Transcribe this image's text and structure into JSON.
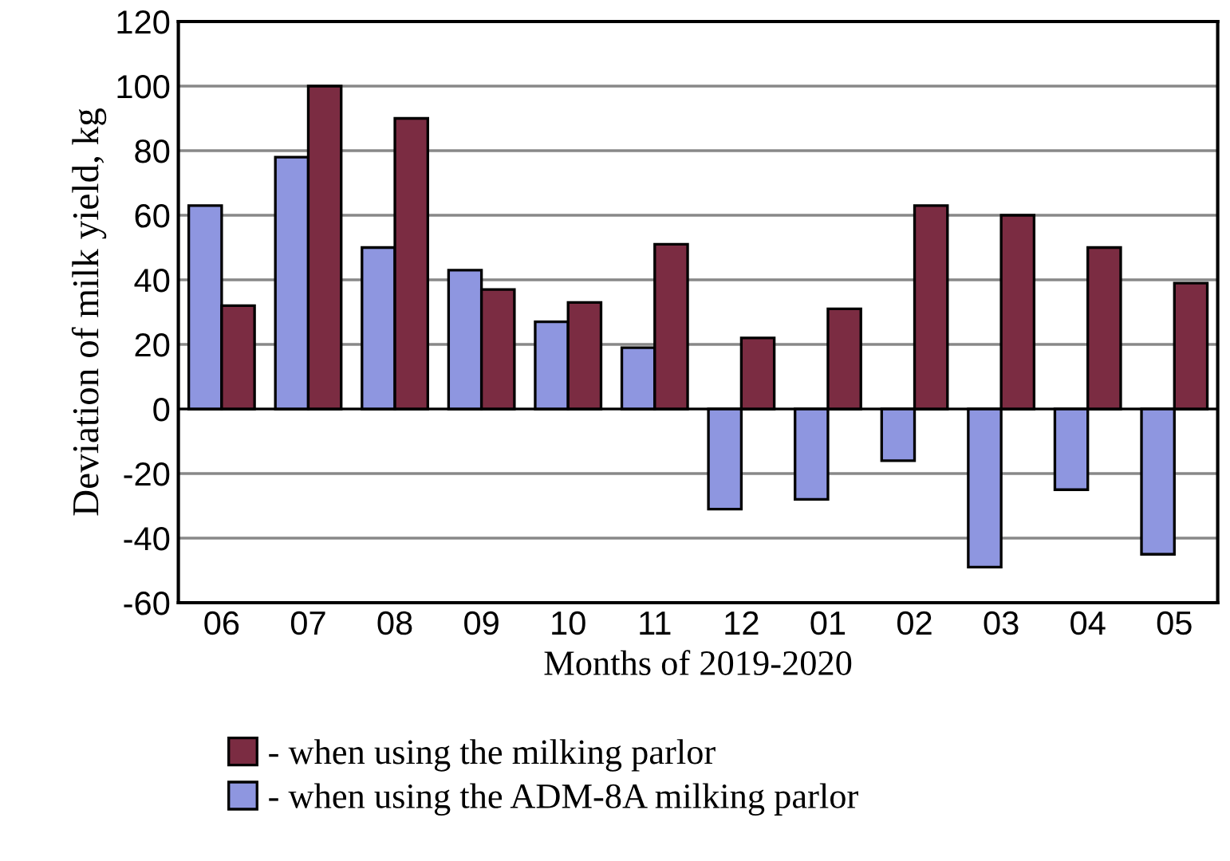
{
  "chart_data": {
    "type": "bar",
    "xlabel": "Months of 2019-2020",
    "ylabel": "Deviation of milk yield, kg",
    "categories": [
      "06",
      "07",
      "08",
      "09",
      "10",
      "11",
      "12",
      "01",
      "02",
      "03",
      "04",
      "05"
    ],
    "series": [
      {
        "name": "- when using the ADM-8A milking parlor",
        "color": "#8e96e0",
        "values": [
          63,
          78,
          50,
          43,
          27,
          19,
          -31,
          -28,
          -16,
          -49,
          -25,
          -45
        ]
      },
      {
        "name": "- when using the milking parlor",
        "color": "#7b2c42",
        "values": [
          32,
          100,
          90,
          37,
          33,
          51,
          22,
          31,
          63,
          60,
          50,
          39
        ]
      }
    ],
    "ylim": [
      -60,
      120
    ],
    "yticks": [
      -60,
      -40,
      -20,
      0,
      20,
      40,
      60,
      80,
      100,
      120
    ],
    "grid": "y",
    "legend": "bottom"
  }
}
